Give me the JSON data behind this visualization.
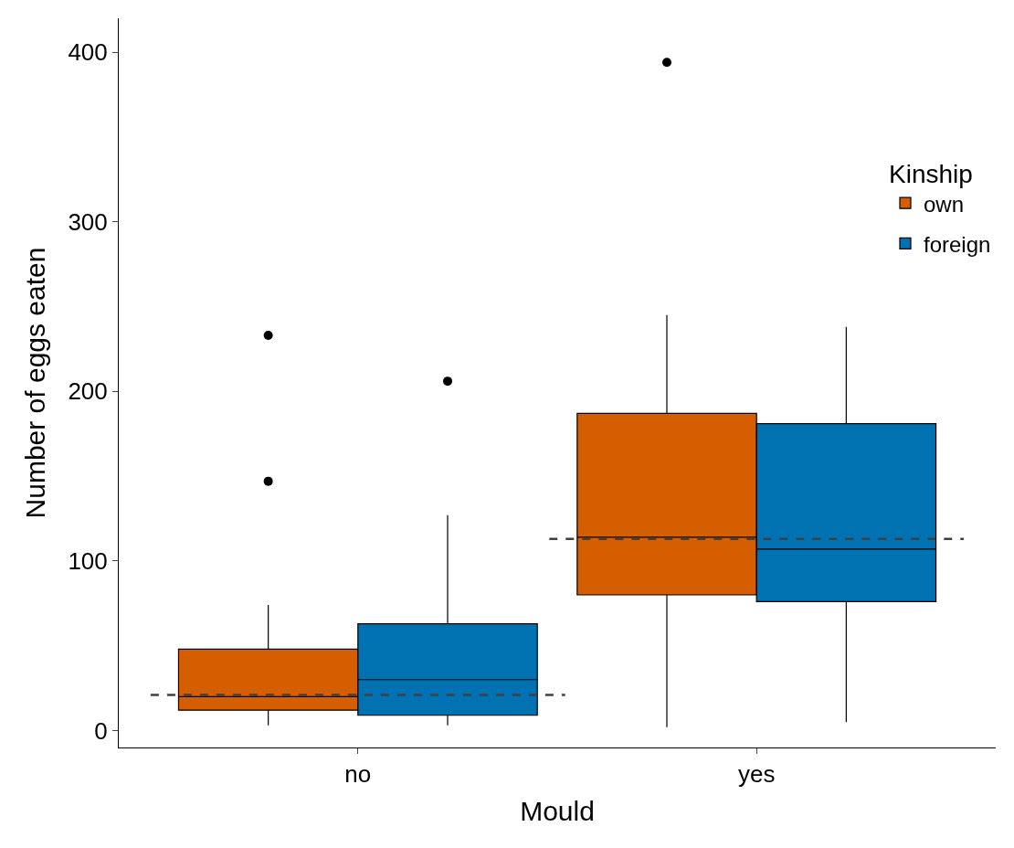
{
  "chart_data": {
    "type": "box",
    "xlabel": "Mould",
    "ylabel": "Number of eggs eaten",
    "legend_title": "Kinship",
    "categories": [
      "no",
      "yes"
    ],
    "series": [
      {
        "name": "own",
        "color": "#d55e00",
        "boxes": [
          {
            "low": 3,
            "q1": 12,
            "median": 20,
            "q3": 48,
            "high": 74,
            "outliers": [
              147,
              233
            ]
          },
          {
            "low": 2,
            "q1": 80,
            "median": 114,
            "q3": 187,
            "high": 245,
            "outliers": [
              394
            ]
          }
        ]
      },
      {
        "name": "foreign",
        "color": "#0072b2",
        "boxes": [
          {
            "low": 3,
            "q1": 9,
            "median": 30,
            "q3": 63,
            "high": 127,
            "outliers": [
              206
            ]
          },
          {
            "low": 5,
            "q1": 76,
            "median": 107,
            "q3": 181,
            "high": 238
          }
        ]
      }
    ],
    "ref_lines": [
      {
        "axis": "y",
        "value": 21,
        "line_style": "dashed",
        "color": "#404040"
      },
      {
        "axis": "y",
        "value": 113,
        "line_style": "dashed",
        "color": "#404040"
      }
    ],
    "ylim": [
      -10,
      420
    ],
    "yticks": [
      0,
      100,
      200,
      300,
      400
    ],
    "legend": "right"
  }
}
